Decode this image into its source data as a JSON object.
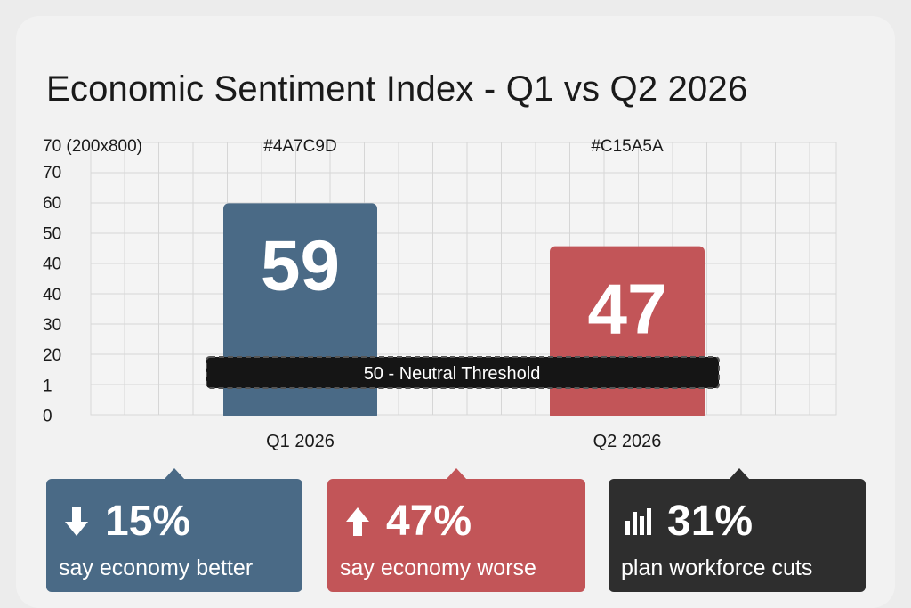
{
  "title": "Economic Sentiment Index - Q1 vs Q2 2026",
  "chart_data": {
    "type": "bar",
    "categories": [
      "Q1 2026",
      "Q2 2026"
    ],
    "values": [
      59,
      47
    ],
    "bar_value_labels": [
      "59",
      "47"
    ],
    "colors": [
      "#4A6A86",
      "#C25558"
    ],
    "color_labels": [
      "#4A7C9D",
      "#C15A5A"
    ],
    "y_header_label": "70  (200x800)",
    "yticks": [
      "70",
      "60",
      "50",
      "40",
      "40",
      "30",
      "20",
      "1",
      "0"
    ],
    "reference_line": {
      "label": "50 - Neutral Threshold",
      "style": "dashed black band"
    },
    "grid": true,
    "xlabel": "",
    "ylabel": ""
  },
  "stats": [
    {
      "icon": "arrow-down-icon",
      "value": "15%",
      "caption": "say economy better",
      "color": "#4A6A86"
    },
    {
      "icon": "arrow-up-icon",
      "value": "47%",
      "caption": "say economy worse",
      "color": "#C25558"
    },
    {
      "icon": "bar-chart-icon",
      "value": "31%",
      "caption": "plan workforce cuts",
      "color": "#2E2E2E"
    }
  ]
}
